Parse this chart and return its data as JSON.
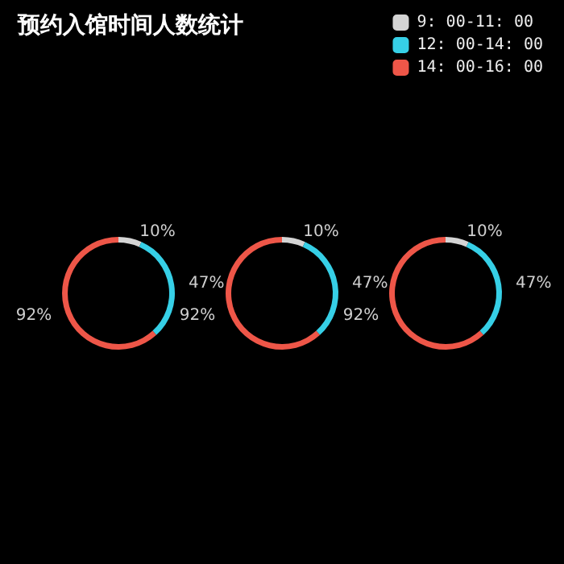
{
  "chart_data": {
    "type": "donut",
    "title": "预约入馆时间人数统计",
    "categories": [
      "9: 00-11: 00",
      "12: 00-14: 00",
      "14: 00-16: 00"
    ],
    "colors": [
      "#d4d4d4",
      "#36cfe6",
      "#ee5648"
    ],
    "series": [
      {
        "values": [
          10,
          47,
          92
        ],
        "value_labels": [
          "10%",
          "47%",
          "92%"
        ]
      },
      {
        "values": [
          10,
          47,
          92
        ],
        "value_labels": [
          "10%",
          "47%",
          "92%"
        ]
      },
      {
        "values": [
          10,
          47,
          92
        ],
        "value_labels": [
          "10%",
          "47%",
          "92%"
        ]
      }
    ],
    "legend": "top right"
  }
}
